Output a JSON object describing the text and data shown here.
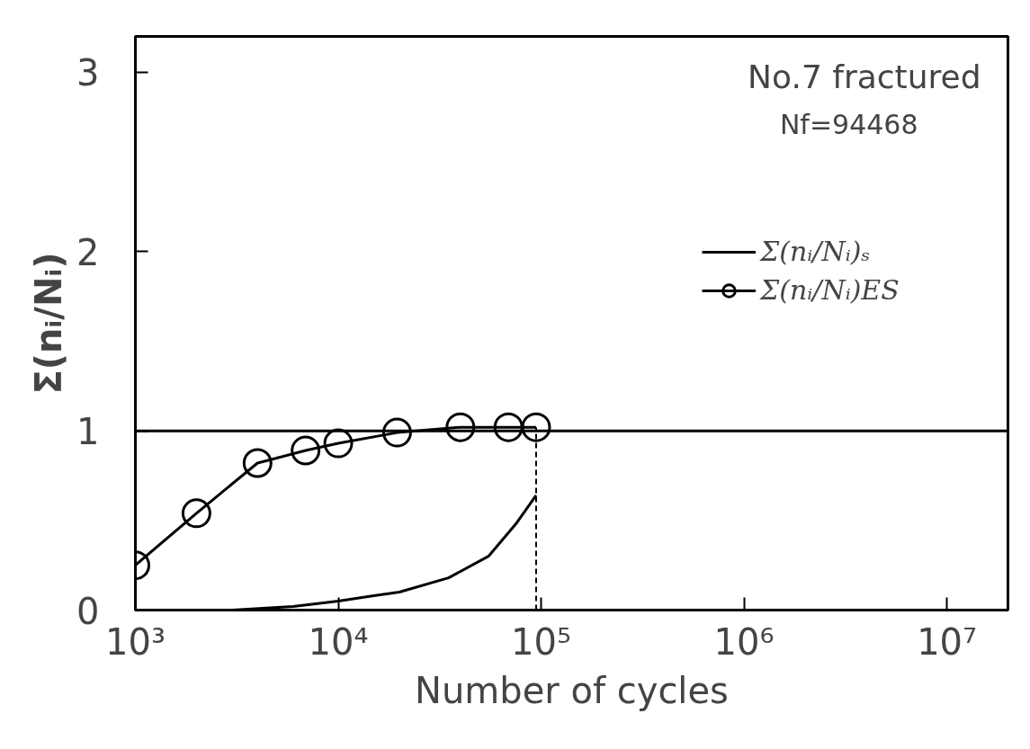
{
  "chart_data": {
    "type": "line",
    "xlabel": "Number of cycles",
    "ylabel": "Σ(nᵢ/Nᵢ)",
    "log": "x",
    "xlim": [
      1000,
      20000000
    ],
    "ylim": [
      0,
      3.2
    ],
    "xticks": [
      {
        "value": 1000,
        "label": "10³"
      },
      {
        "value": 10000,
        "label": "10⁴"
      },
      {
        "value": 100000,
        "label": "10⁵"
      },
      {
        "value": 1000000,
        "label": "10⁶"
      },
      {
        "value": 10000000,
        "label": "10⁷"
      }
    ],
    "yticks": [
      0,
      1,
      2,
      3
    ],
    "series": [
      {
        "name": "Σ(nᵢ/Nᵢ)ₛ",
        "color": "#000000",
        "marker": "none",
        "x": [
          1000,
          3000,
          6000,
          10000,
          15000,
          20000,
          35000,
          55000,
          75000,
          94468
        ],
        "values": [
          0,
          0,
          0.02,
          0.05,
          0.08,
          0.1,
          0.18,
          0.3,
          0.48,
          0.64
        ]
      },
      {
        "name": "Σ(nᵢ/Nᵢ)ES",
        "color": "#000000",
        "marker": "circle",
        "x": [
          1000,
          2000,
          4000,
          6900,
          10000,
          19500,
          40000,
          69000,
          94468
        ],
        "values": [
          0.25,
          0.54,
          0.82,
          0.89,
          0.93,
          0.99,
          1.02,
          1.02,
          1.02
        ]
      }
    ],
    "ref_lines": [
      {
        "axis": "y",
        "value": 1,
        "color": "#000000",
        "line_style": "solid"
      },
      {
        "axis": "x",
        "value": 94468,
        "color": "#000000",
        "line_style": "dashed"
      }
    ],
    "annotations": [
      "No.7 fractured",
      "Nf=94468"
    ],
    "legend": "top right",
    "grid": false,
    "line_style": "solid"
  }
}
